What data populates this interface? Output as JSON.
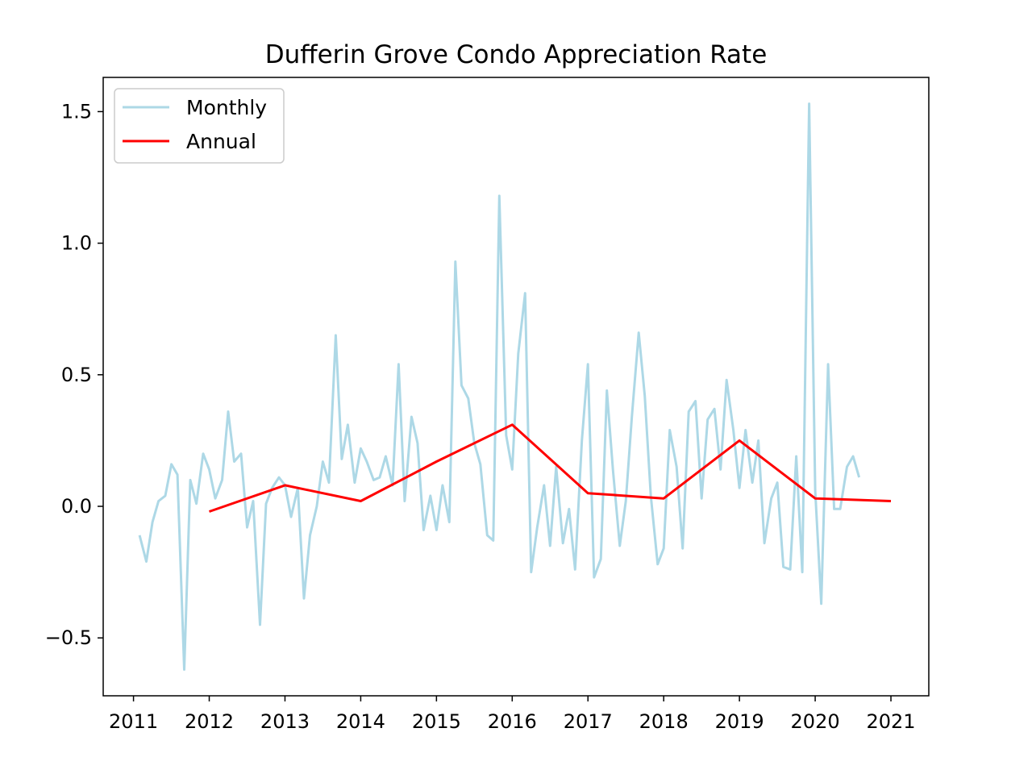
{
  "chart_data": {
    "type": "line",
    "title": "Dufferin Grove Condo Appreciation Rate",
    "xlabel": "",
    "ylabel": "",
    "xlim": [
      2010.6,
      2021.5
    ],
    "ylim": [
      -0.72,
      1.63
    ],
    "x_ticks": [
      2011,
      2012,
      2013,
      2014,
      2015,
      2016,
      2017,
      2018,
      2019,
      2020,
      2021
    ],
    "x_tick_labels": [
      "2011",
      "2012",
      "2013",
      "2014",
      "2015",
      "2016",
      "2017",
      "2018",
      "2019",
      "2020",
      "2021"
    ],
    "y_ticks": [
      -0.5,
      0.0,
      0.5,
      1.0,
      1.5
    ],
    "y_tick_labels": [
      "−0.5",
      "0.0",
      "0.5",
      "1.0",
      "1.5"
    ],
    "grid": false,
    "legend_position": "top-left",
    "series": [
      {
        "name": "Monthly",
        "color": "#add8e6",
        "x": [
          2011.08,
          2011.17,
          2011.25,
          2011.33,
          2011.42,
          2011.5,
          2011.58,
          2011.67,
          2011.75,
          2011.83,
          2011.92,
          2012.0,
          2012.08,
          2012.17,
          2012.25,
          2012.33,
          2012.42,
          2012.5,
          2012.58,
          2012.67,
          2012.75,
          2012.83,
          2012.92,
          2013.0,
          2013.08,
          2013.17,
          2013.25,
          2013.33,
          2013.42,
          2013.5,
          2013.58,
          2013.67,
          2013.75,
          2013.83,
          2013.92,
          2014.0,
          2014.08,
          2014.17,
          2014.25,
          2014.33,
          2014.42,
          2014.5,
          2014.58,
          2014.67,
          2014.75,
          2014.83,
          2014.92,
          2015.0,
          2015.08,
          2015.17,
          2015.25,
          2015.33,
          2015.42,
          2015.5,
          2015.58,
          2015.67,
          2015.75,
          2015.83,
          2015.92,
          2016.0,
          2016.08,
          2016.17,
          2016.25,
          2016.33,
          2016.42,
          2016.5,
          2016.58,
          2016.67,
          2016.75,
          2016.83,
          2016.92,
          2017.0,
          2017.08,
          2017.17,
          2017.25,
          2017.33,
          2017.42,
          2017.5,
          2017.58,
          2017.67,
          2017.75,
          2017.83,
          2017.92,
          2018.0,
          2018.08,
          2018.17,
          2018.25,
          2018.33,
          2018.42,
          2018.5,
          2018.58,
          2018.67,
          2018.75,
          2018.83,
          2018.92,
          2019.0,
          2019.08,
          2019.17,
          2019.25,
          2019.33,
          2019.42,
          2019.5,
          2019.58,
          2019.67,
          2019.75,
          2019.83,
          2019.92,
          2020.0,
          2020.08,
          2020.17,
          2020.25,
          2020.33,
          2020.42,
          2020.5,
          2020.58
        ],
        "values": [
          -0.11,
          -0.21,
          -0.06,
          0.02,
          0.04,
          0.16,
          0.12,
          -0.62,
          0.1,
          0.01,
          0.2,
          0.14,
          0.03,
          0.1,
          0.36,
          0.17,
          0.2,
          -0.08,
          0.02,
          -0.45,
          0.01,
          0.07,
          0.11,
          0.08,
          -0.04,
          0.07,
          -0.35,
          -0.11,
          0.0,
          0.17,
          0.09,
          0.65,
          0.18,
          0.31,
          0.09,
          0.22,
          0.17,
          0.1,
          0.11,
          0.19,
          0.08,
          0.54,
          0.02,
          0.34,
          0.24,
          -0.09,
          0.04,
          -0.09,
          0.08,
          -0.06,
          0.93,
          0.46,
          0.41,
          0.24,
          0.16,
          -0.11,
          -0.13,
          1.18,
          0.27,
          0.14,
          0.58,
          0.81,
          -0.25,
          -0.08,
          0.08,
          -0.15,
          0.15,
          -0.14,
          -0.01,
          -0.24,
          0.25,
          0.54,
          -0.27,
          -0.2,
          0.44,
          0.14,
          -0.15,
          0.02,
          0.34,
          0.66,
          0.42,
          0.04,
          -0.22,
          -0.16,
          0.29,
          0.15,
          -0.16,
          0.36,
          0.4,
          0.03,
          0.33,
          0.37,
          0.14,
          0.48,
          0.29,
          0.07,
          0.29,
          0.09,
          0.25,
          -0.14,
          0.03,
          0.09,
          -0.23,
          -0.24,
          0.19,
          -0.25,
          1.53,
          0.06,
          -0.37,
          0.54,
          -0.01,
          -0.01,
          0.15,
          0.19,
          0.11
        ]
      },
      {
        "name": "Annual",
        "color": "#ff0000",
        "x": [
          2012,
          2013,
          2014,
          2015,
          2016,
          2017,
          2018,
          2019,
          2020,
          2021
        ],
        "values": [
          -0.02,
          0.08,
          0.02,
          0.17,
          0.31,
          0.05,
          0.03,
          0.25,
          0.03,
          0.02
        ]
      }
    ]
  }
}
